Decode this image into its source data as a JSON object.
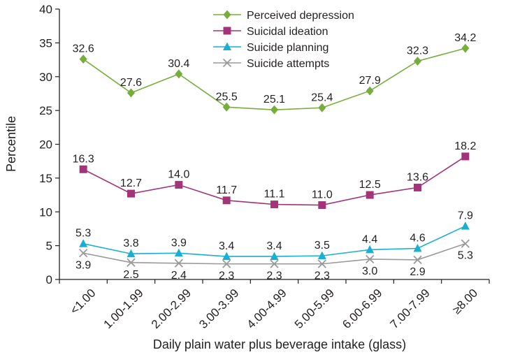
{
  "chart_data": {
    "type": "line",
    "title": "",
    "xlabel": "Daily plain water plus beverage intake (glass)",
    "ylabel": "Percentile",
    "ylim": [
      0,
      40
    ],
    "yticks": [
      0,
      5,
      10,
      15,
      20,
      25,
      30,
      35,
      40
    ],
    "grid": false,
    "legend_position": "top-center",
    "categories": [
      "<1.00",
      "1.00-1.99",
      "2.00-2.99",
      "3.00-3.99",
      "4.00-4.99",
      "5.00-5.99",
      "6.00-6.99",
      "7.00-7.99",
      "≥8.00"
    ],
    "series": [
      {
        "name": "Perceived depression",
        "color": "#77ad3c",
        "marker": "diamond",
        "values": [
          32.6,
          27.6,
          30.4,
          25.5,
          25.1,
          25.4,
          27.9,
          32.3,
          34.2
        ],
        "labels": [
          "32.6",
          "27.6",
          "30.4",
          "25.5",
          "25.1",
          "25.4",
          "27.9",
          "32.3",
          "34.2"
        ]
      },
      {
        "name": "Suicidal ideation",
        "color": "#a2357a",
        "marker": "square",
        "values": [
          16.3,
          12.7,
          14.0,
          11.7,
          11.1,
          11.0,
          12.5,
          13.6,
          18.2
        ],
        "labels": [
          "16.3",
          "12.7",
          "14.0",
          "11.7",
          "11.1",
          "11.0",
          "12.5",
          "13.6",
          "18.2"
        ]
      },
      {
        "name": "Suicide planning",
        "color": "#1aafd0",
        "marker": "triangle",
        "values": [
          5.3,
          3.8,
          3.9,
          3.4,
          3.4,
          3.5,
          4.4,
          4.6,
          7.9
        ],
        "labels": [
          "5.3",
          "3.8",
          "3.9",
          "3.4",
          "3.4",
          "3.5",
          "4.4",
          "4.6",
          "7.9"
        ]
      },
      {
        "name": "Suicide attempts",
        "color": "#9a9a9a",
        "marker": "x",
        "values": [
          3.9,
          2.5,
          2.4,
          2.3,
          2.3,
          2.3,
          3.0,
          2.9,
          5.3
        ],
        "labels": [
          "3.9",
          "2.5",
          "2.4",
          "2.3",
          "2.3",
          "2.3",
          "3.0",
          "2.9",
          "5.3"
        ]
      }
    ]
  }
}
